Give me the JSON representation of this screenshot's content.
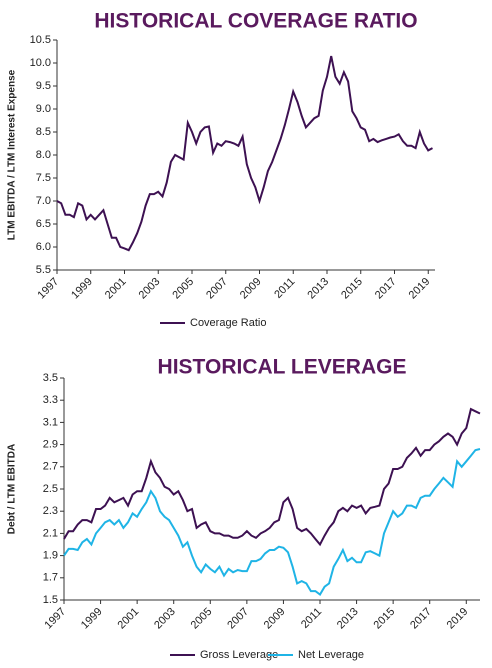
{
  "chart_data": [
    {
      "type": "line",
      "title": "HISTORICAL COVERAGE RATIO",
      "y_label": "LTM EBITDA / LTM Interest Expense",
      "x": [
        1997,
        1997.25,
        1997.5,
        1997.75,
        1998,
        1998.25,
        1998.5,
        1998.75,
        1999,
        1999.25,
        1999.5,
        1999.75,
        2000,
        2000.25,
        2000.5,
        2000.75,
        2001,
        2001.25,
        2001.5,
        2001.75,
        2002,
        2002.25,
        2002.5,
        2002.75,
        2003,
        2003.25,
        2003.5,
        2003.75,
        2004,
        2004.25,
        2004.5,
        2004.75,
        2005,
        2005.25,
        2005.5,
        2005.75,
        2006,
        2006.25,
        2006.5,
        2006.75,
        2007,
        2007.25,
        2007.5,
        2007.75,
        2008,
        2008.25,
        2008.5,
        2008.75,
        2009,
        2009.25,
        2009.5,
        2009.75,
        2010,
        2010.25,
        2010.5,
        2010.75,
        2011,
        2011.25,
        2011.5,
        2011.75,
        2012,
        2012.25,
        2012.5,
        2012.75,
        2013,
        2013.25,
        2013.5,
        2013.75,
        2014,
        2014.25,
        2014.5,
        2014.75,
        2015,
        2015.25,
        2015.5,
        2015.75,
        2016,
        2016.25,
        2016.5,
        2016.75,
        2017,
        2017.25,
        2017.5,
        2017.75,
        2018,
        2018.25,
        2018.5,
        2018.75,
        2019,
        2019.25
      ],
      "series": [
        {
          "name": "Coverage Ratio",
          "color": "#3d1152",
          "values": [
            7.0,
            6.95,
            6.7,
            6.7,
            6.65,
            6.95,
            6.9,
            6.6,
            6.7,
            6.6,
            6.7,
            6.8,
            6.5,
            6.2,
            6.2,
            6.0,
            5.97,
            5.93,
            6.1,
            6.3,
            6.55,
            6.9,
            7.15,
            7.15,
            7.2,
            7.1,
            7.4,
            7.85,
            8.0,
            7.95,
            7.9,
            8.7,
            8.5,
            8.25,
            8.5,
            8.6,
            8.62,
            8.05,
            8.25,
            8.2,
            8.3,
            8.28,
            8.25,
            8.2,
            8.4,
            7.8,
            7.5,
            7.3,
            7.0,
            7.3,
            7.65,
            7.85,
            8.1,
            8.35,
            8.65,
            9.0,
            9.38,
            9.15,
            8.85,
            8.6,
            8.7,
            8.8,
            8.85,
            9.4,
            9.7,
            10.15,
            9.7,
            9.55,
            9.8,
            9.6,
            8.95,
            8.8,
            8.6,
            8.55,
            8.3,
            8.35,
            8.28,
            8.32,
            8.35,
            8.38,
            8.4,
            8.45,
            8.3,
            8.2,
            8.2,
            8.15,
            8.5,
            8.25,
            8.1,
            8.15
          ]
        }
      ],
      "xlim": [
        1997,
        2019.4
      ],
      "xticks": [
        1997,
        1999,
        2001,
        2003,
        2005,
        2007,
        2009,
        2011,
        2013,
        2015,
        2017,
        2019
      ],
      "ylim": [
        5.5,
        10.5
      ],
      "yticks": [
        5.5,
        {
          "value": 6,
          "label": "6.0"
        },
        6.5,
        {
          "value": 7,
          "label": "7.0"
        },
        7.5,
        {
          "value": 8,
          "label": "8.0"
        },
        8.5,
        {
          "value": 9,
          "label": "9.0"
        },
        9.5,
        {
          "value": 10,
          "label": "10.0"
        },
        10.5
      ],
      "legend": "bottom"
    },
    {
      "type": "line",
      "title": "HISTORICAL LEVERAGE",
      "y_label": "Debt / LTM EBITDA",
      "x": [
        1997,
        1997.25,
        1997.5,
        1997.75,
        1998,
        1998.25,
        1998.5,
        1998.75,
        1999,
        1999.25,
        1999.5,
        1999.75,
        2000,
        2000.25,
        2000.5,
        2000.75,
        2001,
        2001.25,
        2001.5,
        2001.75,
        2002,
        2002.25,
        2002.5,
        2002.75,
        2003,
        2003.25,
        2003.5,
        2003.75,
        2004,
        2004.25,
        2004.5,
        2004.75,
        2005,
        2005.25,
        2005.5,
        2005.75,
        2006,
        2006.25,
        2006.5,
        2006.75,
        2007,
        2007.25,
        2007.5,
        2007.75,
        2008,
        2008.25,
        2008.5,
        2008.75,
        2009,
        2009.25,
        2009.5,
        2009.75,
        2010,
        2010.25,
        2010.5,
        2010.75,
        2011,
        2011.25,
        2011.5,
        2011.75,
        2012,
        2012.25,
        2012.5,
        2012.75,
        2013,
        2013.25,
        2013.5,
        2013.75,
        2014,
        2014.25,
        2014.5,
        2014.75,
        2015,
        2015.25,
        2015.5,
        2015.75,
        2016,
        2016.25,
        2016.5,
        2016.75,
        2017,
        2017.25,
        2017.5,
        2017.75,
        2018,
        2018.25,
        2018.5,
        2018.75,
        2019,
        2019.25,
        2019.5,
        2019.75
      ],
      "series": [
        {
          "name": "Gross Leverage",
          "color": "#3d1152",
          "values": [
            2.05,
            2.12,
            2.12,
            2.18,
            2.22,
            2.22,
            2.2,
            2.32,
            2.32,
            2.35,
            2.42,
            2.38,
            2.4,
            2.42,
            2.35,
            2.45,
            2.48,
            2.48,
            2.6,
            2.75,
            2.65,
            2.6,
            2.52,
            2.5,
            2.45,
            2.48,
            2.4,
            2.3,
            2.32,
            2.15,
            2.18,
            2.2,
            2.12,
            2.1,
            2.1,
            2.08,
            2.08,
            2.06,
            2.06,
            2.08,
            2.12,
            2.08,
            2.06,
            2.1,
            2.12,
            2.15,
            2.2,
            2.22,
            2.38,
            2.42,
            2.32,
            2.15,
            2.12,
            2.14,
            2.1,
            2.05,
            2.0,
            2.08,
            2.15,
            2.2,
            2.3,
            2.33,
            2.3,
            2.35,
            2.33,
            2.35,
            2.28,
            2.33,
            2.34,
            2.35,
            2.5,
            2.55,
            2.68,
            2.68,
            2.7,
            2.78,
            2.82,
            2.87,
            2.8,
            2.85,
            2.85,
            2.9,
            2.93,
            2.97,
            3.0,
            2.97,
            2.9,
            3.0,
            3.05,
            3.22,
            3.2,
            3.18
          ]
        },
        {
          "name": "Net Leverage",
          "color": "#1fb4e6",
          "values": [
            1.9,
            1.96,
            1.96,
            1.95,
            2.02,
            2.05,
            2.0,
            2.1,
            2.15,
            2.2,
            2.22,
            2.18,
            2.22,
            2.15,
            2.2,
            2.28,
            2.25,
            2.32,
            2.38,
            2.48,
            2.42,
            2.3,
            2.25,
            2.22,
            2.15,
            2.08,
            1.98,
            2.02,
            1.9,
            1.8,
            1.75,
            1.82,
            1.78,
            1.75,
            1.8,
            1.72,
            1.78,
            1.75,
            1.77,
            1.76,
            1.76,
            1.85,
            1.85,
            1.87,
            1.92,
            1.95,
            1.95,
            1.98,
            1.97,
            1.93,
            1.8,
            1.65,
            1.67,
            1.65,
            1.58,
            1.58,
            1.55,
            1.62,
            1.65,
            1.8,
            1.87,
            1.95,
            1.85,
            1.88,
            1.84,
            1.84,
            1.93,
            1.94,
            1.92,
            1.9,
            2.1,
            2.2,
            2.3,
            2.25,
            2.28,
            2.35,
            2.35,
            2.33,
            2.42,
            2.44,
            2.44,
            2.5,
            2.55,
            2.6,
            2.56,
            2.52,
            2.75,
            2.7,
            2.75,
            2.8,
            2.85,
            2.86
          ]
        }
      ],
      "xlim": [
        1997,
        2019.75
      ],
      "xticks": [
        1997,
        1999,
        2001,
        2003,
        2005,
        2007,
        2009,
        2011,
        2013,
        2015,
        2017,
        2019
      ],
      "ylim": [
        1.5,
        3.5
      ],
      "yticks": [
        1.5,
        1.7,
        1.9,
        2.1,
        2.3,
        2.5,
        2.7,
        2.9,
        3.1,
        3.3,
        3.5
      ],
      "legend": "bottom"
    }
  ]
}
